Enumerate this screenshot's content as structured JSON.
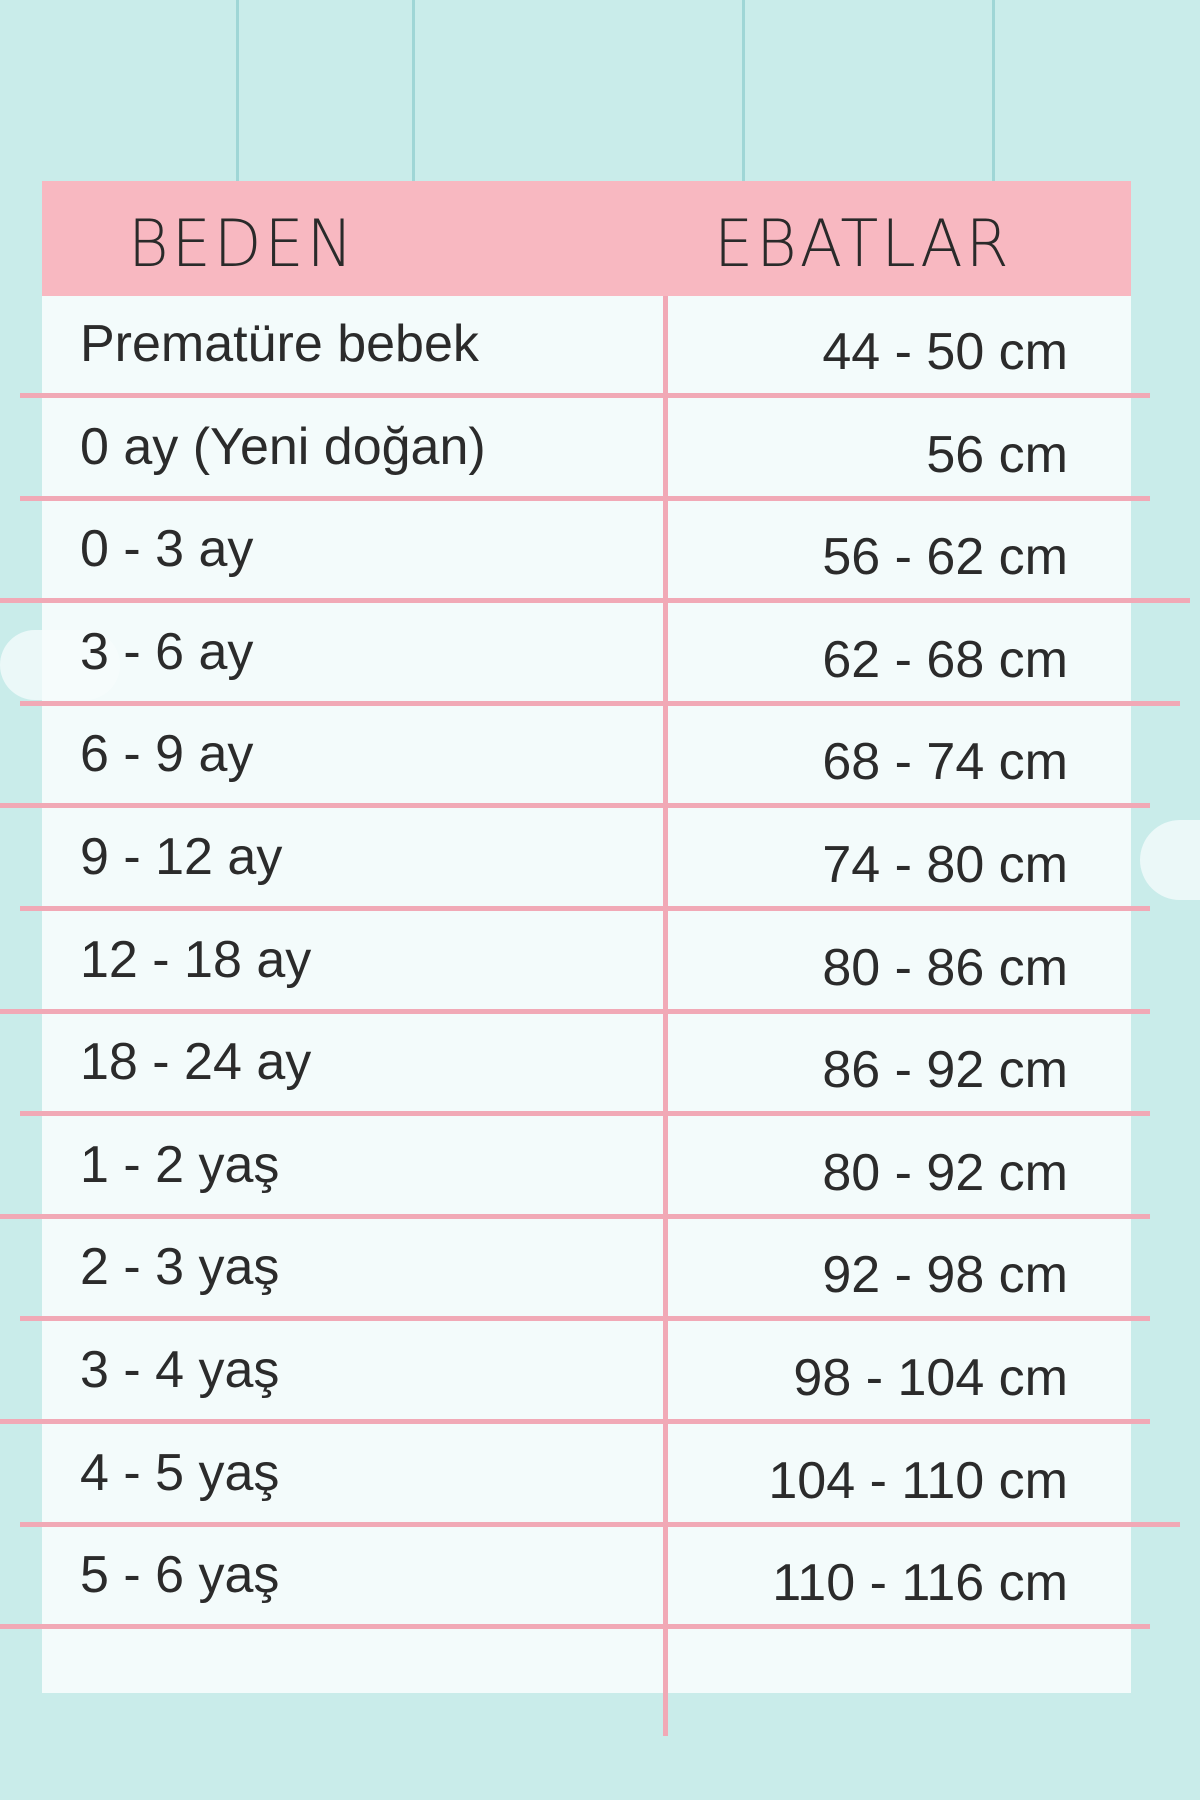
{
  "colors": {
    "background": "#c9ecea",
    "header": "#f8b8c1",
    "lines": "#f1a9b6"
  },
  "table": {
    "headers": {
      "size": "BEDEN",
      "measure": "EBATLAR"
    },
    "rows": [
      {
        "size": "Prematüre bebek",
        "measure": "44 - 50 cm"
      },
      {
        "size": "0 ay (Yeni doğan)",
        "measure": "56 cm"
      },
      {
        "size": "0 - 3 ay",
        "measure": "56 - 62 cm"
      },
      {
        "size": "3 - 6 ay",
        "measure": "62 - 68 cm"
      },
      {
        "size": "6 - 9 ay",
        "measure": "68 - 74 cm"
      },
      {
        "size": "9 - 12 ay",
        "measure": "74 - 80 cm"
      },
      {
        "size": "12 - 18 ay",
        "measure": "80 - 86 cm"
      },
      {
        "size": "18 - 24 ay",
        "measure": "86 - 92 cm"
      },
      {
        "size": "1 - 2 yaş",
        "measure": "80 - 92 cm"
      },
      {
        "size": "2 - 3 yaş",
        "measure": "92 - 98 cm"
      },
      {
        "size": "3 - 4 yaş",
        "measure": "98 - 104 cm"
      },
      {
        "size": "4 - 5 yaş",
        "measure": "104 - 110 cm"
      },
      {
        "size": "5 - 6 yaş",
        "measure": "110 - 116 cm"
      }
    ]
  }
}
